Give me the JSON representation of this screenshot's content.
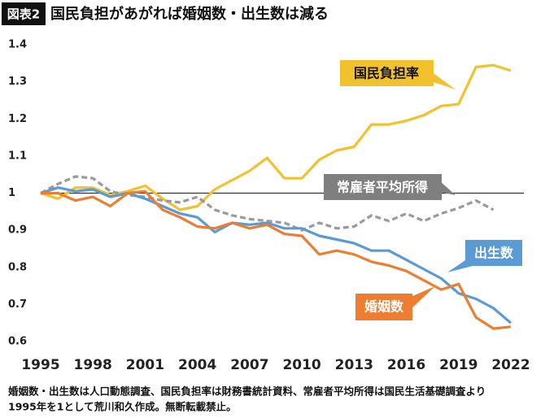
{
  "chart_data": {
    "type": "line",
    "figure_label": "図表2",
    "title": "国民負担があがれば婚姻数・出生数は減る",
    "x": [
      1995,
      1996,
      1997,
      1998,
      1999,
      2000,
      2001,
      2002,
      2003,
      2004,
      2005,
      2006,
      2007,
      2008,
      2009,
      2010,
      2011,
      2012,
      2013,
      2014,
      2015,
      2016,
      2017,
      2018,
      2019,
      2020,
      2021,
      2022
    ],
    "xlim": [
      1995,
      2022
    ],
    "xticks": [
      1995,
      1998,
      2001,
      2004,
      2007,
      2010,
      2013,
      2016,
      2019,
      2022
    ],
    "ylim": [
      0.6,
      1.4
    ],
    "yticks": [
      0.6,
      0.7,
      0.8,
      0.9,
      1,
      1.1,
      1.2,
      1.3,
      1.4
    ],
    "reference_line": 1,
    "series": [
      {
        "name": "国民負担率",
        "color": "#f2c12e",
        "values": [
          1.0,
          0.985,
          1.015,
          1.015,
          0.995,
          1.005,
          1.02,
          0.985,
          0.955,
          0.965,
          1.01,
          1.035,
          1.06,
          1.095,
          1.04,
          1.04,
          1.09,
          1.115,
          1.125,
          1.185,
          1.185,
          1.195,
          1.21,
          1.235,
          1.24,
          1.34,
          1.345,
          1.33
        ]
      },
      {
        "name": "常雇者平均所得",
        "color": "#9a9a9a",
        "dashed": true,
        "values": [
          1.0,
          1.025,
          1.045,
          1.04,
          1.005,
          0.995,
          0.99,
          0.98,
          0.975,
          0.99,
          0.955,
          0.94,
          0.93,
          0.925,
          0.92,
          0.9,
          0.92,
          0.905,
          0.91,
          0.94,
          0.925,
          0.945,
          0.925,
          0.945,
          0.96,
          0.98,
          0.955,
          null
        ]
      },
      {
        "name": "出生数",
        "color": "#5b9bd5",
        "values": [
          1.0,
          1.015,
          1.005,
          1.01,
          0.99,
          1.0,
          0.985,
          0.965,
          0.945,
          0.935,
          0.895,
          0.92,
          0.915,
          0.92,
          0.905,
          0.905,
          0.885,
          0.875,
          0.865,
          0.845,
          0.845,
          0.82,
          0.795,
          0.77,
          0.73,
          0.715,
          0.69,
          0.65
        ]
      },
      {
        "name": "婚姻数",
        "color": "#ed7d31",
        "values": [
          1.0,
          1.0,
          0.98,
          0.99,
          0.965,
          1.0,
          1.005,
          0.955,
          0.935,
          0.91,
          0.905,
          0.92,
          0.905,
          0.915,
          0.89,
          0.885,
          0.835,
          0.845,
          0.835,
          0.815,
          0.805,
          0.79,
          0.765,
          0.74,
          0.755,
          0.665,
          0.635,
          0.64
        ]
      }
    ],
    "note": [
      "婚姻数・出生数は人口動態調査、国民負担率は財務書統計資料、常雇者平均所得は国民生活基礎調査より",
      "1995年を1として荒川和久作成。無断転載禁止。"
    ]
  }
}
